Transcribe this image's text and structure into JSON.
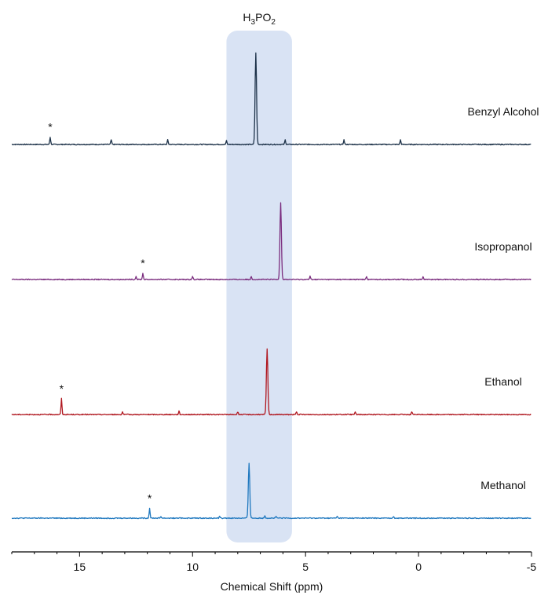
{
  "chart_data": {
    "type": "line",
    "title": "",
    "xlabel": "Chemical Shift (ppm)",
    "ylabel": "",
    "xlim": [
      18,
      -5
    ],
    "x_ticks": [
      15,
      10,
      5,
      0,
      -5
    ],
    "grid": false,
    "highlight": {
      "label_parts": [
        "H",
        "3",
        "PO",
        "2"
      ],
      "x_range": [
        8.5,
        5.6
      ],
      "color": "#d9e3f4"
    },
    "marker": "*",
    "series": [
      {
        "name": "Benzyl Alcohol",
        "color": "#1c3148",
        "main_peak": 7.2,
        "star_x": 16.3,
        "peaks": [
          [
            16.3,
            0.08
          ],
          [
            13.6,
            0.05
          ],
          [
            11.1,
            0.05
          ],
          [
            8.5,
            0.04
          ],
          [
            7.2,
            1.0
          ],
          [
            5.9,
            0.05
          ],
          [
            3.3,
            0.05
          ],
          [
            0.8,
            0.05
          ]
        ]
      },
      {
        "name": "Isopropanol",
        "color": "#7a2c7e",
        "main_peak": 6.1,
        "star_x": 12.2,
        "peaks": [
          [
            12.5,
            0.04
          ],
          [
            12.2,
            0.08
          ],
          [
            10.0,
            0.04
          ],
          [
            7.4,
            0.04
          ],
          [
            6.1,
            1.0
          ],
          [
            4.8,
            0.04
          ],
          [
            2.3,
            0.04
          ],
          [
            -0.2,
            0.04
          ]
        ]
      },
      {
        "name": "Ethanol",
        "color": "#b0171f",
        "main_peak": 6.7,
        "star_x": 15.8,
        "peaks": [
          [
            15.8,
            0.24
          ],
          [
            13.1,
            0.04
          ],
          [
            10.6,
            0.05
          ],
          [
            8.0,
            0.04
          ],
          [
            6.7,
            1.0
          ],
          [
            5.4,
            0.04
          ],
          [
            2.8,
            0.04
          ],
          [
            0.3,
            0.04
          ]
        ]
      },
      {
        "name": "Methanol",
        "color": "#1f78bf",
        "main_peak": 7.5,
        "star_x": 11.9,
        "peaks": [
          [
            11.9,
            0.18
          ],
          [
            11.4,
            0.03
          ],
          [
            8.8,
            0.03
          ],
          [
            7.5,
            1.0
          ],
          [
            6.8,
            0.05
          ],
          [
            6.3,
            0.03
          ],
          [
            3.6,
            0.03
          ],
          [
            1.1,
            0.03
          ]
        ]
      }
    ]
  }
}
